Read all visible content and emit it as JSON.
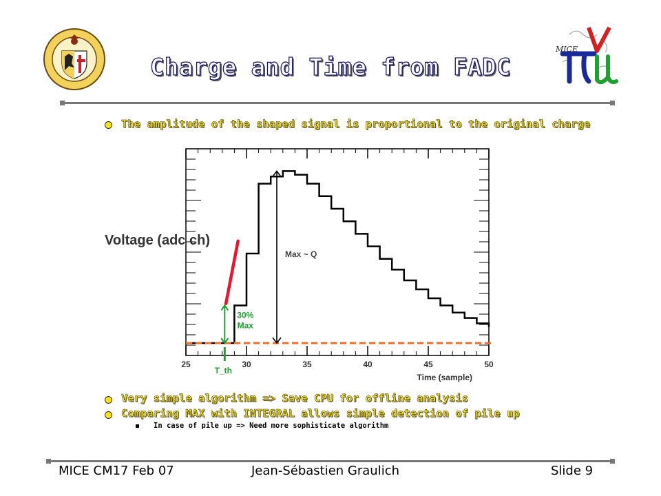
{
  "slide": {
    "title": "Charge and Time from FADC",
    "bullets": [
      "The amplitude of the shaped signal is proportional to the original charge",
      "Very simple algorithm => Save CPU for offline analysis",
      "Comparing MAX with INTEGRAL allows simple detection of pile up"
    ],
    "sub_bullets": [
      "In case of pile up => Need more sophisticate algorithm"
    ],
    "footer": {
      "left": "MICE CM17 Feb 07",
      "center": "Jean-Sébastien Graulich",
      "right": "Slide 9"
    },
    "logos": {
      "left": "university-of-geneva-seal",
      "right": "mice-logo",
      "right_text": "MICE"
    }
  },
  "chart_data": {
    "type": "line",
    "step": true,
    "xlabel": "Time (sample)",
    "ylabel": "Voltage (adc ch)",
    "xlim": [
      25,
      50
    ],
    "xticks": [
      25,
      30,
      35,
      40,
      45,
      50
    ],
    "ylim": [
      0,
      100
    ],
    "series": [
      {
        "x": [
          25,
          26,
          27,
          28,
          29,
          30,
          31,
          32,
          33,
          34,
          35,
          36,
          37,
          38,
          39,
          40,
          41,
          42,
          43,
          44,
          45,
          46,
          47,
          48,
          49,
          50
        ],
        "y": [
          0,
          0,
          0,
          0,
          21,
          50,
          89,
          93,
          96,
          94,
          89,
          82,
          75,
          68,
          61,
          54,
          47,
          41,
          35,
          30,
          25,
          21,
          17,
          14,
          11,
          9
        ]
      }
    ],
    "baseline": 0,
    "colors": {
      "signal": "#000000",
      "baseline": "#e8702a",
      "slope": "#e8162e",
      "threshold": "#20a030",
      "axes": "#000000"
    },
    "annotations": [
      {
        "text": "Max ~ Q",
        "type": "arrow",
        "x": 32.5,
        "from_y": 0,
        "to_y": 96
      },
      {
        "text": "30% Max",
        "type": "arrow",
        "x": 28.2,
        "from_y": 0,
        "to_y": 21,
        "color": "#20a030"
      },
      {
        "text": "T_th",
        "type": "marker",
        "x": 28.2,
        "color": "#20a030"
      },
      {
        "type": "slope-line",
        "from": [
          28.3,
          22
        ],
        "to": [
          29.3,
          57
        ],
        "color": "#e8162e"
      }
    ]
  }
}
